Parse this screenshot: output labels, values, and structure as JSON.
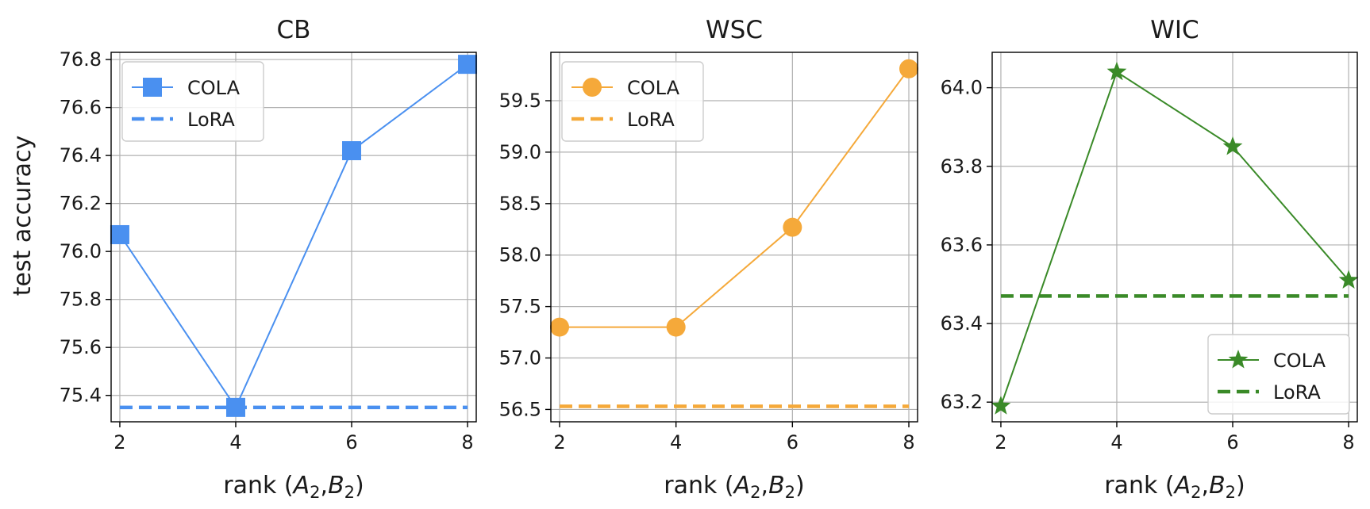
{
  "figure": {
    "ylabel": "test accuracy",
    "xlabel_prefix": "rank (",
    "xlabel_italic_a": "A",
    "xlabel_italic_b": "B",
    "xlabel_sub": "2",
    "xlabel_sep": ",",
    "xlabel_suffix": ")"
  },
  "chart_data": [
    {
      "type": "line",
      "title": "CB",
      "x": [
        2,
        4,
        6,
        8
      ],
      "xticks": [
        "2",
        "4",
        "6",
        "8"
      ],
      "xlim": [
        1.85,
        8.15
      ],
      "ylim": [
        75.29,
        76.83
      ],
      "yticks": [
        75.4,
        75.6,
        75.8,
        76.0,
        76.2,
        76.4,
        76.6,
        76.8
      ],
      "ytick_labels": [
        "75.4",
        "75.6",
        "75.8",
        "76.0",
        "76.2",
        "76.4",
        "76.6",
        "76.8"
      ],
      "color": "#4a90f0",
      "marker": "square",
      "grid": true,
      "legend_position": "top-left",
      "series": [
        {
          "name": "COLA",
          "style": "solid-marker",
          "values": [
            76.07,
            75.35,
            76.42,
            76.78
          ]
        },
        {
          "name": "LoRA",
          "style": "dashed",
          "values": [
            75.35,
            75.35,
            75.35,
            75.35
          ]
        }
      ]
    },
    {
      "type": "line",
      "title": "WSC",
      "x": [
        2,
        4,
        6,
        8
      ],
      "xticks": [
        "2",
        "4",
        "6",
        "8"
      ],
      "xlim": [
        1.85,
        8.15
      ],
      "ylim": [
        56.38,
        59.97
      ],
      "yticks": [
        56.5,
        57.0,
        57.5,
        58.0,
        58.5,
        59.0,
        59.5
      ],
      "ytick_labels": [
        "56.5",
        "57.0",
        "57.5",
        "58.0",
        "58.5",
        "59.0",
        "59.5"
      ],
      "color": "#f5a93a",
      "marker": "circle",
      "grid": true,
      "legend_position": "top-left",
      "series": [
        {
          "name": "COLA",
          "style": "solid-marker",
          "values": [
            57.3,
            57.3,
            58.27,
            59.81
          ]
        },
        {
          "name": "LoRA",
          "style": "dashed",
          "values": [
            56.53,
            56.53,
            56.53,
            56.53
          ]
        }
      ]
    },
    {
      "type": "line",
      "title": "WIC",
      "x": [
        2,
        4,
        6,
        8
      ],
      "xticks": [
        "2",
        "4",
        "6",
        "8"
      ],
      "xlim": [
        1.85,
        8.15
      ],
      "ylim": [
        63.15,
        64.09
      ],
      "yticks": [
        63.2,
        63.4,
        63.6,
        63.8,
        64.0
      ],
      "ytick_labels": [
        "63.2",
        "63.4",
        "63.6",
        "63.8",
        "64.0"
      ],
      "color": "#3a8a28",
      "marker": "star",
      "grid": true,
      "legend_position": "bottom-right",
      "series": [
        {
          "name": "COLA",
          "style": "solid-marker",
          "values": [
            63.19,
            64.04,
            63.85,
            63.51
          ]
        },
        {
          "name": "LoRA",
          "style": "dashed",
          "values": [
            63.47,
            63.47,
            63.47,
            63.47
          ]
        }
      ]
    }
  ]
}
